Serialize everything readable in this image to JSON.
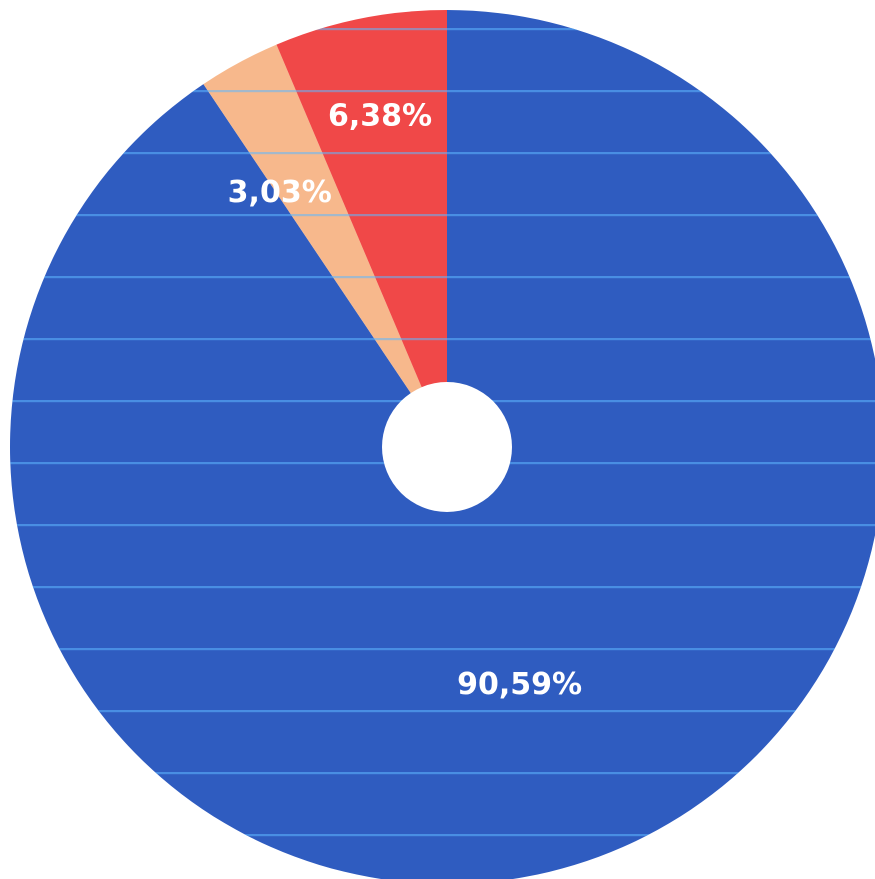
{
  "chart_data": {
    "type": "pie",
    "title": "",
    "donut": true,
    "categories": [
      "",
      "",
      ""
    ],
    "values": [
      90.59,
      3.03,
      6.38
    ],
    "data_labels": [
      "90,59%",
      "3,03%",
      "6,38%"
    ],
    "colors": [
      "#2f5cc0",
      "#f7b88c",
      "#f04848"
    ],
    "start_angle_deg": 0,
    "direction": "clockwise",
    "legend": "none",
    "texture": "horizontal-lines"
  }
}
